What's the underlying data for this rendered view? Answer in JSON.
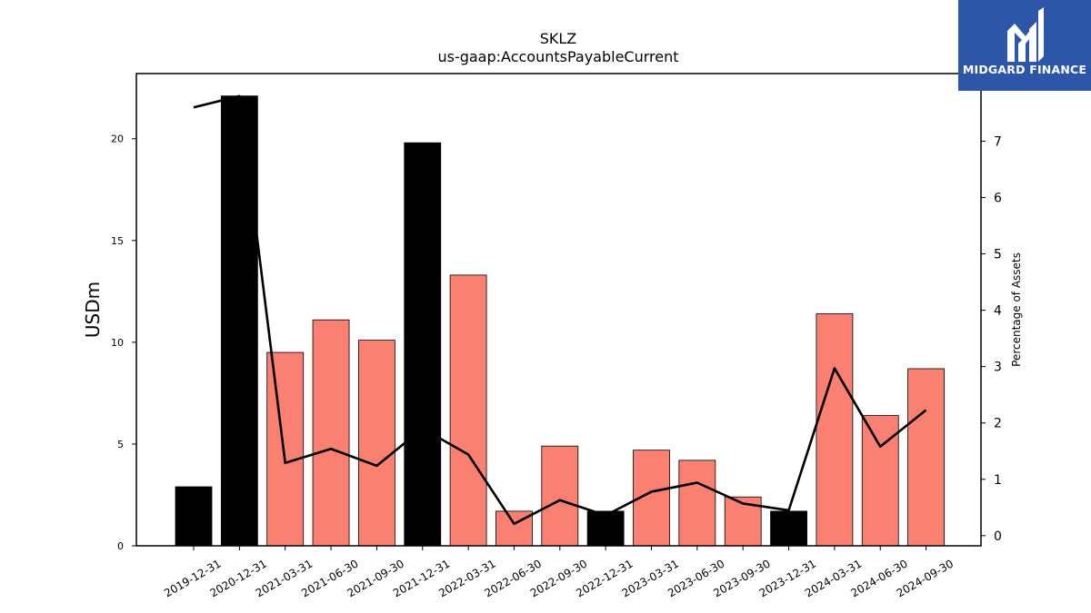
{
  "chart_data": {
    "type": "bar",
    "title": "SKLZ",
    "subtitle": "us-gaap:AccountsPayableCurrent",
    "ylabel": "USDm",
    "y2label": "Percentage of Assets",
    "categories": [
      "2019-12-31",
      "2020-12-31",
      "2021-03-31",
      "2021-06-30",
      "2021-09-30",
      "2021-12-31",
      "2022-03-31",
      "2022-06-30",
      "2022-09-30",
      "2022-12-31",
      "2023-03-31",
      "2023-06-30",
      "2023-09-30",
      "2023-12-31",
      "2024-03-31",
      "2024-06-30",
      "2024-09-30"
    ],
    "series": [
      {
        "type": "bar",
        "axis": "left",
        "values": [
          2.9,
          22.1,
          9.5,
          11.1,
          10.1,
          19.8,
          13.3,
          1.7,
          4.9,
          1.7,
          4.7,
          4.2,
          2.4,
          1.7,
          11.4,
          6.4,
          8.7
        ],
        "colors": [
          "#000000",
          "#000000",
          "#fa8072",
          "#fa8072",
          "#fa8072",
          "#000000",
          "#fa8072",
          "#fa8072",
          "#fa8072",
          "#000000",
          "#fa8072",
          "#fa8072",
          "#fa8072",
          "#000000",
          "#fa8072",
          "#fa8072",
          "#fa8072"
        ]
      },
      {
        "type": "line",
        "axis": "right",
        "color": "#000000",
        "values": [
          7.6,
          7.8,
          1.29,
          1.54,
          1.24,
          1.9,
          1.44,
          0.21,
          0.63,
          0.36,
          0.78,
          0.94,
          0.57,
          0.45,
          2.97,
          1.58,
          2.23
        ]
      }
    ],
    "ylim": [
      0,
      23.2
    ],
    "y2lim": [
      -0.18,
      8.2
    ],
    "yticks": [
      0,
      5,
      10,
      15,
      20
    ],
    "y2ticks": [
      0,
      1,
      2,
      3,
      4,
      5,
      6,
      7
    ],
    "grid": false
  },
  "logo": {
    "text": "MIDGARD FINANCE"
  }
}
